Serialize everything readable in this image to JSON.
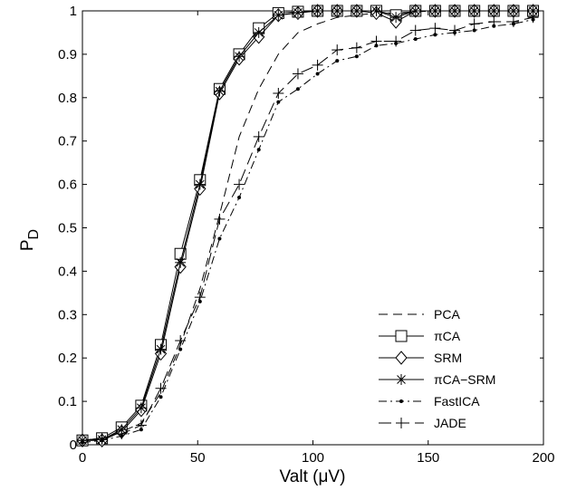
{
  "chart_data": {
    "type": "line",
    "title": "",
    "xlabel": "Valt (μV)",
    "ylabel": "P",
    "ylabel_subscript": "D",
    "xlim": [
      0,
      200
    ],
    "ylim": [
      0,
      1
    ],
    "x_ticks": [
      "0",
      "50",
      "100",
      "150",
      "200"
    ],
    "y_ticks": [
      "0",
      "0.1",
      "0.2",
      "0.3",
      "0.4",
      "0.5",
      "0.6",
      "0.7",
      "0.8",
      "0.9",
      "1"
    ],
    "grid": false,
    "legend_position": "bottom-right",
    "x": [
      0,
      8.5,
      17,
      25.5,
      34,
      42.5,
      51,
      59.5,
      68,
      76.5,
      85,
      93.5,
      102,
      110.5,
      119,
      127.5,
      136,
      144.5,
      153,
      161.5,
      170,
      178.5,
      187,
      195.5
    ],
    "series": [
      {
        "name": "PCA",
        "marker": "none",
        "dash": "dashed",
        "values": [
          0.01,
          0.015,
          0.03,
          0.05,
          0.12,
          0.23,
          0.36,
          0.53,
          0.71,
          0.82,
          0.9,
          0.95,
          0.97,
          0.985,
          0.99,
          0.995,
          0.995,
          0.998,
          1.0,
          1.0,
          1.0,
          1.0,
          1.0,
          1.0
        ]
      },
      {
        "name": "πCA",
        "marker": "square",
        "dash": "solid",
        "values": [
          0.01,
          0.015,
          0.04,
          0.09,
          0.23,
          0.44,
          0.61,
          0.82,
          0.9,
          0.96,
          0.995,
          0.998,
          1.0,
          1.0,
          1.0,
          1.0,
          0.99,
          1.0,
          1.0,
          1.0,
          1.0,
          1.0,
          1.0,
          1.0
        ]
      },
      {
        "name": "SRM",
        "marker": "diamond",
        "dash": "solid",
        "values": [
          0.01,
          0.01,
          0.03,
          0.08,
          0.21,
          0.41,
          0.59,
          0.81,
          0.89,
          0.94,
          0.99,
          0.995,
          1.0,
          1.0,
          1.0,
          0.995,
          0.975,
          1.0,
          1.0,
          1.0,
          1.0,
          1.0,
          1.0,
          1.0
        ]
      },
      {
        "name": "πCA−SRM",
        "marker": "asterisk",
        "dash": "solid",
        "values": [
          0.01,
          0.012,
          0.035,
          0.085,
          0.22,
          0.42,
          0.6,
          0.815,
          0.895,
          0.95,
          0.99,
          0.996,
          1.0,
          1.0,
          1.0,
          1.0,
          0.985,
          1.0,
          1.0,
          1.0,
          1.0,
          1.0,
          1.0,
          1.0
        ]
      },
      {
        "name": "FastICA",
        "marker": "dot",
        "dash": "dashdot",
        "values": [
          0.005,
          0.01,
          0.02,
          0.035,
          0.11,
          0.22,
          0.33,
          0.475,
          0.57,
          0.68,
          0.79,
          0.82,
          0.855,
          0.885,
          0.895,
          0.92,
          0.925,
          0.935,
          0.945,
          0.95,
          0.955,
          0.965,
          0.97,
          0.98
        ]
      },
      {
        "name": "JADE",
        "marker": "plus",
        "dash": "longdash",
        "values": [
          0.01,
          0.015,
          0.025,
          0.045,
          0.13,
          0.24,
          0.34,
          0.52,
          0.6,
          0.71,
          0.81,
          0.855,
          0.875,
          0.91,
          0.915,
          0.93,
          0.93,
          0.955,
          0.96,
          0.955,
          0.97,
          0.975,
          0.975,
          0.985
        ]
      }
    ]
  }
}
